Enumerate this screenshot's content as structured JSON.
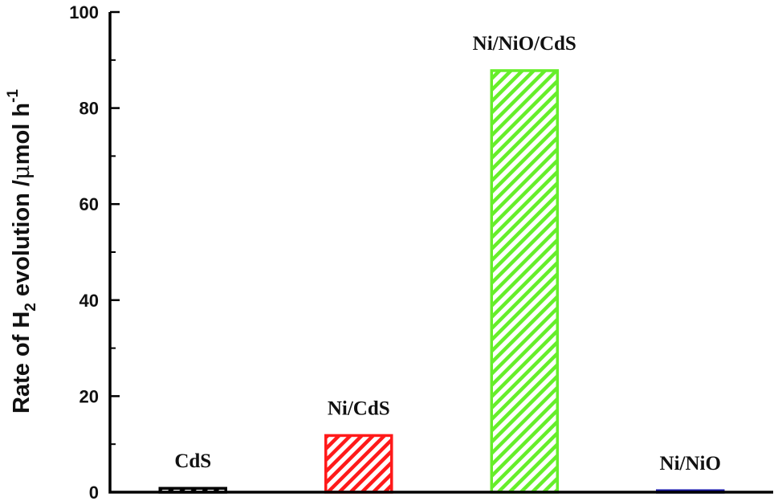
{
  "chart_data": {
    "type": "bar",
    "categories": [
      "CdS",
      "Ni/CdS",
      "Ni/NiO/CdS",
      "Ni/NiO"
    ],
    "values": [
      0.8,
      11.8,
      87.8,
      0.3
    ],
    "bar_colors": [
      "#000000",
      "#ff1a1a",
      "#66ee2a",
      "#1a1aaa"
    ],
    "bar_fill": "diagonal-hatch",
    "ylabel": {
      "prefix": "Rate of H",
      "subscript": "2",
      "middle": " evolution /",
      "mu": "μ",
      "unit": "mol h",
      "superscript": "-1"
    },
    "ylim": [
      0,
      100
    ],
    "yticks": [
      "0",
      "20",
      "40",
      "60",
      "80",
      "100"
    ],
    "xlabel": "",
    "grid": false,
    "legend": "none"
  }
}
